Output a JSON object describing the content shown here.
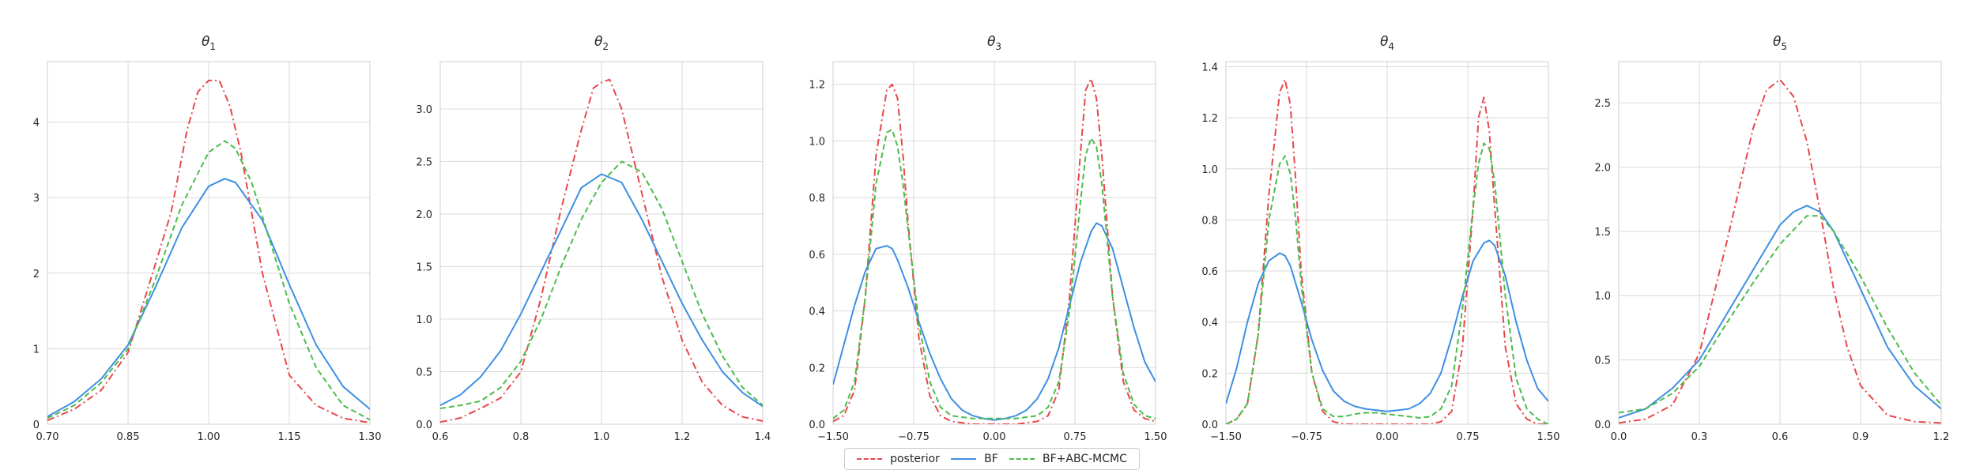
{
  "colors": {
    "posterior": "#e8474a",
    "BF": "#3e8fe3",
    "BF+ABC-MCMC": "#4cbb4c"
  },
  "legend": [
    {
      "key": "posterior",
      "label": "posterior",
      "dash": "dashdot"
    },
    {
      "key": "BF",
      "label": "BF",
      "dash": "solid"
    },
    {
      "key": "BF+ABC-MCMC",
      "label": "BF+ABC-MCMC",
      "dash": "dashed"
    }
  ],
  "chart_data": [
    {
      "type": "line",
      "title": "θ",
      "title_sub": "1",
      "xlim": [
        0.7,
        1.3
      ],
      "ylim": [
        0,
        4.8
      ],
      "xticks": [
        "0.70",
        "0.85",
        "1.00",
        "1.15",
        "1.30"
      ],
      "xtick_values": [
        0.7,
        0.85,
        1.0,
        1.15,
        1.3
      ],
      "yticks": [
        "0",
        "1",
        "2",
        "3",
        "4"
      ],
      "ytick_values": [
        0,
        1,
        2,
        3,
        4
      ],
      "grid": true,
      "series": [
        {
          "name": "posterior",
          "x": [
            0.7,
            0.75,
            0.8,
            0.85,
            0.9,
            0.93,
            0.96,
            0.98,
            1.0,
            1.02,
            1.04,
            1.06,
            1.1,
            1.15,
            1.2,
            1.25,
            1.3
          ],
          "y": [
            0.05,
            0.2,
            0.45,
            0.95,
            2.1,
            2.8,
            3.9,
            4.4,
            4.55,
            4.55,
            4.2,
            3.6,
            2.0,
            0.65,
            0.25,
            0.08,
            0.02
          ]
        },
        {
          "name": "BF",
          "x": [
            0.7,
            0.75,
            0.8,
            0.85,
            0.9,
            0.95,
            1.0,
            1.03,
            1.05,
            1.1,
            1.15,
            1.2,
            1.25,
            1.3
          ],
          "y": [
            0.1,
            0.3,
            0.6,
            1.05,
            1.8,
            2.6,
            3.15,
            3.25,
            3.2,
            2.7,
            1.85,
            1.05,
            0.5,
            0.2
          ]
        },
        {
          "name": "BF+ABC-MCMC",
          "x": [
            0.7,
            0.75,
            0.8,
            0.85,
            0.9,
            0.95,
            1.0,
            1.03,
            1.05,
            1.08,
            1.1,
            1.15,
            1.2,
            1.25,
            1.3
          ],
          "y": [
            0.08,
            0.25,
            0.55,
            1.0,
            1.9,
            2.9,
            3.6,
            3.75,
            3.65,
            3.2,
            2.75,
            1.6,
            0.75,
            0.25,
            0.06
          ]
        }
      ]
    },
    {
      "type": "line",
      "title": "θ",
      "title_sub": "2",
      "xlim": [
        0.6,
        1.4
      ],
      "ylim": [
        0,
        3.45
      ],
      "xticks": [
        "0.6",
        "0.8",
        "1.0",
        "1.2",
        "1.4"
      ],
      "xtick_values": [
        0.6,
        0.8,
        1.0,
        1.2,
        1.4
      ],
      "yticks": [
        "0.0",
        "0.5",
        "1.0",
        "1.5",
        "2.0",
        "2.5",
        "3.0"
      ],
      "ytick_values": [
        0,
        0.5,
        1.0,
        1.5,
        2.0,
        2.5,
        3.0
      ],
      "grid": true,
      "series": [
        {
          "name": "posterior",
          "x": [
            0.6,
            0.65,
            0.7,
            0.75,
            0.8,
            0.85,
            0.9,
            0.95,
            0.98,
            1.0,
            1.02,
            1.05,
            1.1,
            1.15,
            1.2,
            1.25,
            1.3,
            1.35,
            1.4
          ],
          "y": [
            0.02,
            0.06,
            0.15,
            0.25,
            0.5,
            1.2,
            2.05,
            2.8,
            3.2,
            3.25,
            3.28,
            3.0,
            2.2,
            1.4,
            0.8,
            0.4,
            0.18,
            0.07,
            0.03
          ]
        },
        {
          "name": "BF",
          "x": [
            0.6,
            0.65,
            0.7,
            0.75,
            0.8,
            0.85,
            0.9,
            0.95,
            1.0,
            1.05,
            1.1,
            1.15,
            1.2,
            1.25,
            1.3,
            1.35,
            1.4
          ],
          "y": [
            0.18,
            0.28,
            0.45,
            0.7,
            1.05,
            1.45,
            1.85,
            2.25,
            2.38,
            2.3,
            1.95,
            1.55,
            1.15,
            0.8,
            0.5,
            0.3,
            0.17
          ]
        },
        {
          "name": "BF+ABC-MCMC",
          "x": [
            0.6,
            0.65,
            0.7,
            0.75,
            0.8,
            0.85,
            0.9,
            0.95,
            1.0,
            1.05,
            1.1,
            1.15,
            1.2,
            1.25,
            1.3,
            1.35,
            1.4
          ],
          "y": [
            0.15,
            0.18,
            0.22,
            0.35,
            0.6,
            1.0,
            1.5,
            1.95,
            2.3,
            2.5,
            2.4,
            2.05,
            1.55,
            1.05,
            0.65,
            0.35,
            0.18
          ]
        }
      ]
    },
    {
      "type": "line",
      "title": "θ",
      "title_sub": "3",
      "xlim": [
        -1.5,
        1.5
      ],
      "ylim": [
        0,
        1.28
      ],
      "xticks": [
        "−1.50",
        "−0.75",
        "0.00",
        "0.75",
        "1.50"
      ],
      "xtick_values": [
        -1.5,
        -0.75,
        0.0,
        0.75,
        1.5
      ],
      "yticks": [
        "0.0",
        "0.2",
        "0.4",
        "0.6",
        "0.8",
        "1.0",
        "1.2"
      ],
      "ytick_values": [
        0,
        0.2,
        0.4,
        0.6,
        0.8,
        1.0,
        1.2
      ],
      "grid": true,
      "series": [
        {
          "name": "posterior",
          "x": [
            -1.5,
            -1.4,
            -1.3,
            -1.2,
            -1.1,
            -1.0,
            -0.95,
            -0.9,
            -0.85,
            -0.8,
            -0.7,
            -0.6,
            -0.5,
            -0.4,
            -0.2,
            0.0,
            0.2,
            0.4,
            0.5,
            0.6,
            0.7,
            0.8,
            0.85,
            0.9,
            0.95,
            1.0,
            1.1,
            1.2,
            1.3,
            1.4,
            1.5
          ],
          "y": [
            0.01,
            0.03,
            0.12,
            0.45,
            0.95,
            1.18,
            1.2,
            1.15,
            0.95,
            0.7,
            0.3,
            0.1,
            0.03,
            0.01,
            0.0,
            0.0,
            0.0,
            0.01,
            0.03,
            0.12,
            0.45,
            0.95,
            1.18,
            1.22,
            1.15,
            0.95,
            0.45,
            0.15,
            0.05,
            0.02,
            0.01
          ]
        },
        {
          "name": "BF",
          "x": [
            -1.5,
            -1.4,
            -1.3,
            -1.2,
            -1.1,
            -1.0,
            -0.95,
            -0.9,
            -0.8,
            -0.7,
            -0.6,
            -0.5,
            -0.4,
            -0.3,
            -0.2,
            -0.1,
            0.0,
            0.1,
            0.2,
            0.3,
            0.4,
            0.5,
            0.6,
            0.7,
            0.8,
            0.9,
            0.95,
            1.0,
            1.1,
            1.2,
            1.3,
            1.4,
            1.5
          ],
          "y": [
            0.14,
            0.28,
            0.42,
            0.54,
            0.62,
            0.63,
            0.62,
            0.58,
            0.48,
            0.36,
            0.25,
            0.16,
            0.09,
            0.05,
            0.03,
            0.02,
            0.015,
            0.02,
            0.03,
            0.05,
            0.09,
            0.16,
            0.27,
            0.42,
            0.57,
            0.68,
            0.71,
            0.7,
            0.62,
            0.48,
            0.34,
            0.22,
            0.15
          ]
        },
        {
          "name": "BF+ABC-MCMC",
          "x": [
            -1.5,
            -1.4,
            -1.3,
            -1.2,
            -1.1,
            -1.0,
            -0.95,
            -0.9,
            -0.85,
            -0.8,
            -0.7,
            -0.6,
            -0.5,
            -0.4,
            -0.2,
            0.0,
            0.2,
            0.4,
            0.5,
            0.6,
            0.7,
            0.8,
            0.85,
            0.9,
            0.95,
            1.0,
            1.1,
            1.2,
            1.3,
            1.4,
            1.5
          ],
          "y": [
            0.02,
            0.05,
            0.15,
            0.45,
            0.85,
            1.03,
            1.04,
            0.98,
            0.85,
            0.68,
            0.35,
            0.15,
            0.06,
            0.03,
            0.02,
            0.02,
            0.02,
            0.03,
            0.06,
            0.15,
            0.4,
            0.78,
            0.95,
            1.01,
            0.98,
            0.85,
            0.45,
            0.18,
            0.07,
            0.03,
            0.02
          ]
        }
      ]
    },
    {
      "type": "line",
      "title": "θ",
      "title_sub": "4",
      "xlim": [
        -1.5,
        1.5
      ],
      "ylim": [
        0,
        1.42
      ],
      "xticks": [
        "−1.50",
        "−0.75",
        "0.00",
        "0.75",
        "1.50"
      ],
      "xtick_values": [
        -1.5,
        -0.75,
        0.0,
        0.75,
        1.5
      ],
      "yticks": [
        "0.0",
        "0.2",
        "0.4",
        "0.6",
        "0.8",
        "1.0",
        "1.2",
        "1.4"
      ],
      "ytick_values": [
        0,
        0.2,
        0.4,
        0.6,
        0.8,
        1.0,
        1.2,
        1.4
      ],
      "grid": true,
      "series": [
        {
          "name": "posterior",
          "x": [
            -1.5,
            -1.4,
            -1.3,
            -1.2,
            -1.1,
            -1.0,
            -0.95,
            -0.9,
            -0.85,
            -0.8,
            -0.7,
            -0.6,
            -0.5,
            -0.4,
            -0.2,
            0.0,
            0.2,
            0.4,
            0.5,
            0.6,
            0.7,
            0.8,
            0.85,
            0.9,
            0.95,
            1.0,
            1.1,
            1.2,
            1.3,
            1.4,
            1.5
          ],
          "y": [
            0.0,
            0.02,
            0.08,
            0.35,
            0.9,
            1.3,
            1.35,
            1.25,
            0.95,
            0.6,
            0.2,
            0.05,
            0.01,
            0.0,
            0.0,
            0.0,
            0.0,
            0.0,
            0.01,
            0.05,
            0.3,
            0.85,
            1.2,
            1.28,
            1.15,
            0.85,
            0.3,
            0.08,
            0.02,
            0.0,
            0.0
          ]
        },
        {
          "name": "BF",
          "x": [
            -1.5,
            -1.4,
            -1.3,
            -1.2,
            -1.1,
            -1.0,
            -0.95,
            -0.9,
            -0.8,
            -0.7,
            -0.6,
            -0.5,
            -0.4,
            -0.3,
            -0.2,
            -0.1,
            0.0,
            0.1,
            0.2,
            0.3,
            0.4,
            0.5,
            0.6,
            0.7,
            0.8,
            0.9,
            0.95,
            1.0,
            1.1,
            1.2,
            1.3,
            1.4,
            1.5
          ],
          "y": [
            0.08,
            0.22,
            0.4,
            0.55,
            0.64,
            0.67,
            0.66,
            0.62,
            0.48,
            0.33,
            0.21,
            0.13,
            0.09,
            0.07,
            0.06,
            0.055,
            0.05,
            0.055,
            0.06,
            0.08,
            0.12,
            0.2,
            0.34,
            0.5,
            0.64,
            0.71,
            0.72,
            0.7,
            0.58,
            0.4,
            0.25,
            0.14,
            0.09
          ]
        },
        {
          "name": "BF+ABC-MCMC",
          "x": [
            -1.5,
            -1.4,
            -1.3,
            -1.2,
            -1.1,
            -1.0,
            -0.95,
            -0.9,
            -0.85,
            -0.8,
            -0.7,
            -0.6,
            -0.5,
            -0.4,
            -0.3,
            -0.2,
            -0.1,
            0.0,
            0.1,
            0.2,
            0.3,
            0.4,
            0.5,
            0.6,
            0.7,
            0.8,
            0.85,
            0.9,
            0.95,
            1.0,
            1.1,
            1.2,
            1.3,
            1.4,
            1.5
          ],
          "y": [
            0.0,
            0.02,
            0.08,
            0.35,
            0.8,
            1.02,
            1.05,
            0.98,
            0.8,
            0.55,
            0.2,
            0.06,
            0.03,
            0.03,
            0.04,
            0.045,
            0.045,
            0.04,
            0.035,
            0.03,
            0.025,
            0.03,
            0.06,
            0.15,
            0.45,
            0.85,
            1.02,
            1.1,
            1.08,
            0.95,
            0.5,
            0.18,
            0.06,
            0.02,
            0.0
          ]
        }
      ]
    },
    {
      "type": "line",
      "title": "θ",
      "title_sub": "5",
      "xlim": [
        0.0,
        1.2
      ],
      "ylim": [
        0,
        2.82
      ],
      "xticks": [
        "0.0",
        "0.3",
        "0.6",
        "0.9",
        "1.2"
      ],
      "xtick_values": [
        0.0,
        0.3,
        0.6,
        0.9,
        1.2
      ],
      "yticks": [
        "0.0",
        "0.5",
        "1.0",
        "1.5",
        "2.0",
        "2.5"
      ],
      "ytick_values": [
        0,
        0.5,
        1.0,
        1.5,
        2.0,
        2.5
      ],
      "grid": true,
      "series": [
        {
          "name": "posterior",
          "x": [
            0.0,
            0.1,
            0.2,
            0.3,
            0.4,
            0.45,
            0.5,
            0.55,
            0.6,
            0.65,
            0.7,
            0.75,
            0.8,
            0.85,
            0.9,
            1.0,
            1.1,
            1.2
          ],
          "y": [
            0.01,
            0.04,
            0.15,
            0.55,
            1.4,
            1.85,
            2.3,
            2.6,
            2.68,
            2.55,
            2.2,
            1.65,
            1.05,
            0.6,
            0.3,
            0.07,
            0.02,
            0.01
          ]
        },
        {
          "name": "BF",
          "x": [
            0.0,
            0.1,
            0.2,
            0.3,
            0.4,
            0.5,
            0.6,
            0.65,
            0.7,
            0.75,
            0.8,
            0.9,
            1.0,
            1.1,
            1.2
          ],
          "y": [
            0.05,
            0.12,
            0.28,
            0.5,
            0.85,
            1.2,
            1.55,
            1.65,
            1.7,
            1.65,
            1.5,
            1.05,
            0.6,
            0.3,
            0.12
          ]
        },
        {
          "name": "BF+ABC-MCMC",
          "x": [
            0.0,
            0.1,
            0.2,
            0.3,
            0.4,
            0.5,
            0.6,
            0.7,
            0.75,
            0.8,
            0.9,
            1.0,
            1.1,
            1.2
          ],
          "y": [
            0.09,
            0.12,
            0.24,
            0.45,
            0.78,
            1.1,
            1.4,
            1.62,
            1.62,
            1.5,
            1.15,
            0.75,
            0.4,
            0.15
          ]
        }
      ]
    }
  ]
}
